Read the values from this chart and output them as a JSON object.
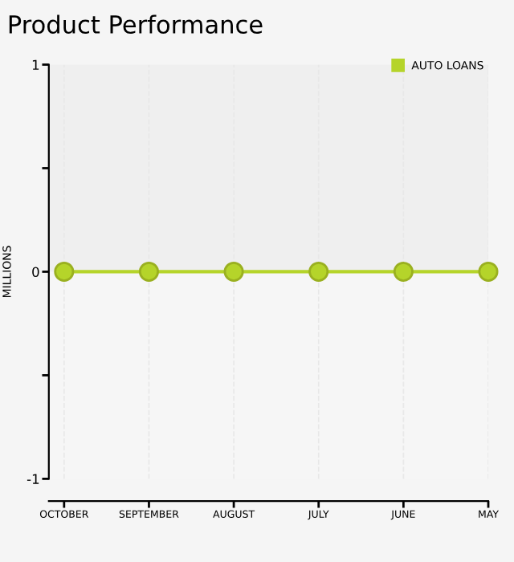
{
  "chart_data": {
    "type": "line",
    "title": "Product Performance",
    "ylabel": "MILLIONS",
    "categories": [
      "OCTOBER",
      "SEPTEMBER",
      "AUGUST",
      "JULY",
      "JUNE",
      "MAY"
    ],
    "series": [
      {
        "name": "AUTO LOANS",
        "color": "#b5d42a",
        "values": [
          0,
          0,
          0,
          0,
          0,
          0
        ]
      }
    ],
    "ylim": [
      -1,
      1
    ],
    "yticks": [
      -1,
      {
        "value": -0.5,
        "label": null
      },
      0,
      {
        "value": 0.5,
        "label": null
      },
      1
    ],
    "bands": [
      {
        "axis": "y",
        "from": 0,
        "to": 1,
        "color": "#efefef"
      }
    ],
    "grid": "x",
    "legend": "top right",
    "marker": "circle",
    "line_style": "solid"
  }
}
